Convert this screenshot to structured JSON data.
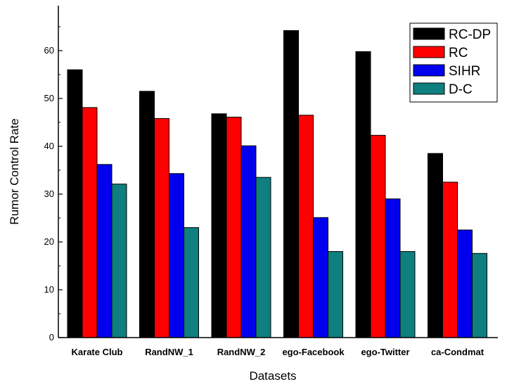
{
  "chart_data": {
    "type": "bar",
    "xlabel": "Datasets",
    "ylabel": "Rumor Control Rate",
    "ylim": [
      0,
      70
    ],
    "yticks": [
      0,
      10,
      20,
      30,
      40,
      50,
      60
    ],
    "grid": false,
    "legend_position": "top-right",
    "categories": [
      "Karate Club",
      "RandNW_1",
      "RandNW_2",
      "ego-Facebook",
      "ego-Twitter",
      "ca-Condmat"
    ],
    "series": [
      {
        "name": "RC-DP",
        "color": "#000000",
        "values": [
          56,
          51.5,
          46.8,
          64.2,
          59.8,
          38.5
        ]
      },
      {
        "name": "RC",
        "color": "#ff0000",
        "values": [
          48.1,
          45.8,
          46.1,
          46.5,
          42.3,
          32.5
        ]
      },
      {
        "name": "SIHR",
        "color": "#0000ee",
        "values": [
          36.2,
          34.3,
          40.1,
          25.1,
          29,
          22.5
        ]
      },
      {
        "name": "D-C",
        "color": "#0f7f7f",
        "values": [
          32.1,
          23,
          33.5,
          18,
          18,
          17.6
        ]
      }
    ]
  }
}
